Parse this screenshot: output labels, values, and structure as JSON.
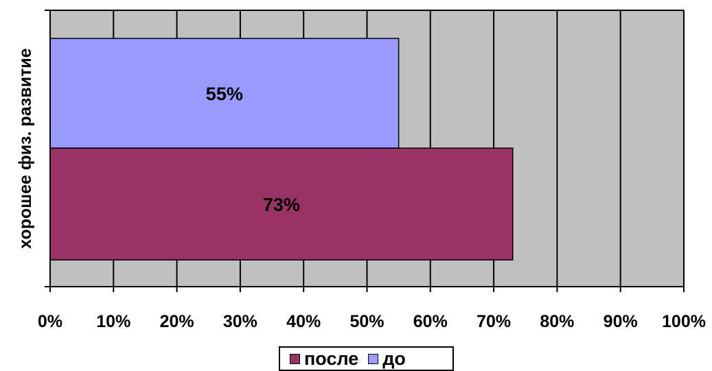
{
  "chart_data": {
    "type": "bar",
    "orientation": "horizontal",
    "categories": [
      "хорошее физ. развитие"
    ],
    "ylabel": "хорошее физ. развитие",
    "xlim": [
      0,
      100
    ],
    "x_ticks": [
      "0%",
      "10%",
      "20%",
      "30%",
      "40%",
      "50%",
      "60%",
      "70%",
      "80%",
      "90%",
      "100%"
    ],
    "grid": "vertical",
    "legend_position": "bottom",
    "plot_background": "#c0c0c0",
    "series": [
      {
        "name": "до",
        "values": [
          55
        ],
        "label": "55%",
        "color": "#9999ff"
      },
      {
        "name": "после",
        "values": [
          73
        ],
        "label": "73%",
        "color": "#993366"
      }
    ],
    "legend_order": [
      "после",
      "до"
    ]
  }
}
